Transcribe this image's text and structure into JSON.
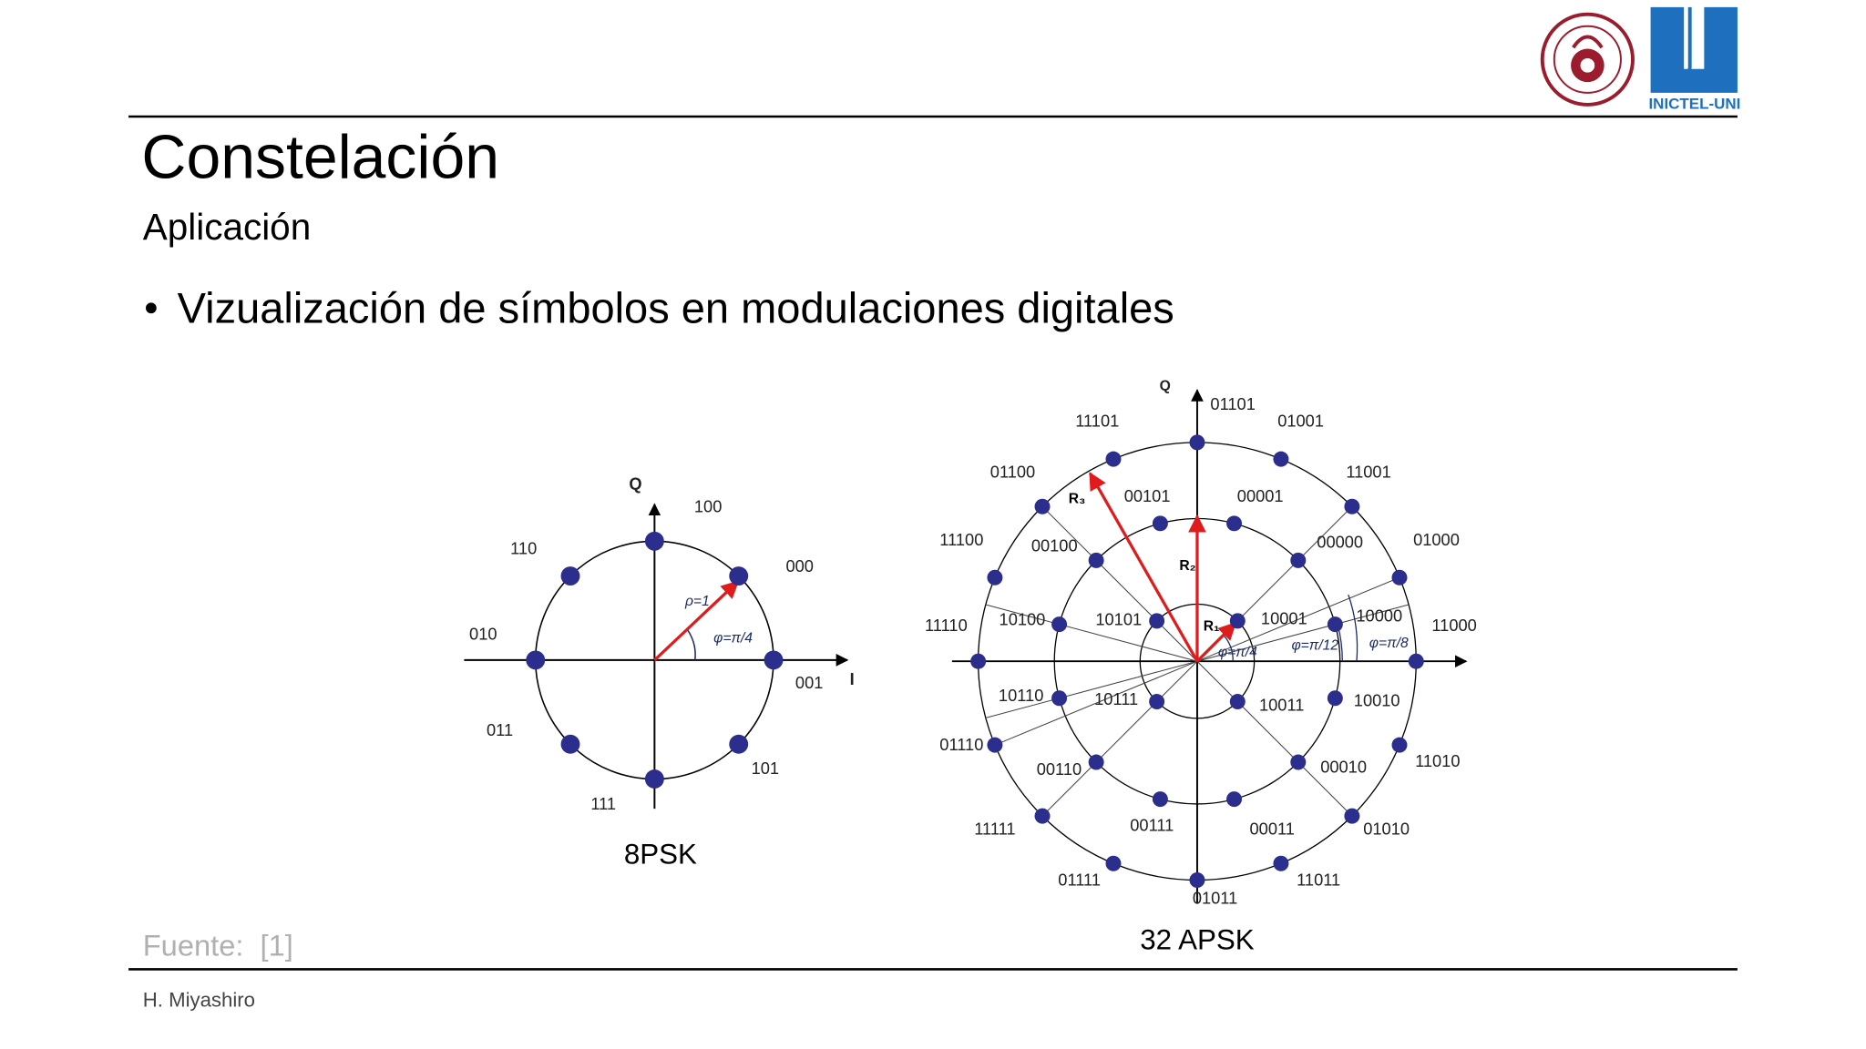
{
  "header": {
    "title": "Constelación",
    "subtitle": "Aplicación",
    "bullet": "Vizualización de símbolos en modulaciones digitales"
  },
  "logos": {
    "inictel": "INICTEL-UNI"
  },
  "diagrams": [
    {
      "caption": "8PSK",
      "axis_q": "Q",
      "axis_i": "I",
      "points": [
        "001",
        "000",
        "100",
        "110",
        "010",
        "011",
        "111",
        "101"
      ],
      "annotations": [
        "ρ=1",
        "φ=π/4"
      ]
    },
    {
      "caption": "32 APSK",
      "axis_q": "Q",
      "points": [
        "11000",
        "01000",
        "11001",
        "01001",
        "01101",
        "11101",
        "01100",
        "11100",
        "11110",
        "01110",
        "11111",
        "01111",
        "01011",
        "11011",
        "01010",
        "11010",
        "10000",
        "00000",
        "00001",
        "00101",
        "00100",
        "10100",
        "10110",
        "00110",
        "00111",
        "00011",
        "00010",
        "10010",
        "10001",
        "10101",
        "10111",
        "10011"
      ],
      "annotations": [
        "R₁",
        "R₂",
        "R₃",
        "φ=π/4",
        "φ=π/12",
        "φ=π/8"
      ]
    }
  ],
  "source": "Fuente:  [1]",
  "footer": "H. Miyashiro"
}
